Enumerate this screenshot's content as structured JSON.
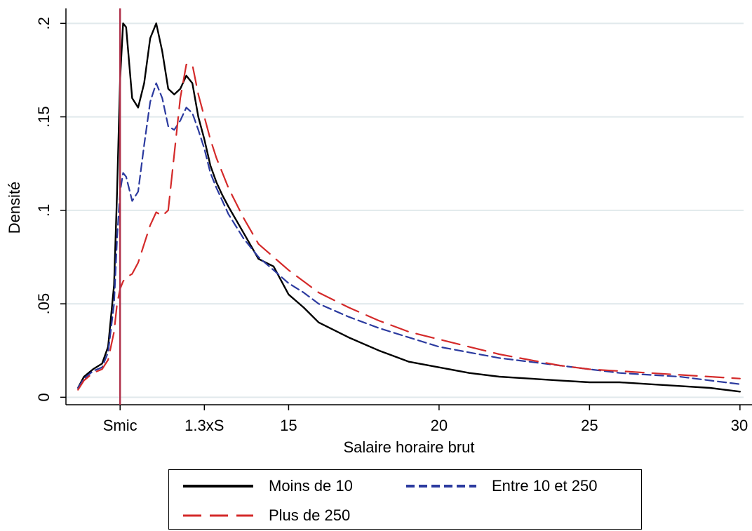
{
  "chart_data": {
    "type": "line",
    "title": "",
    "xlabel": "Salaire horaire brut",
    "ylabel": "Densité",
    "xlim": [
      7.6,
      30.4
    ],
    "ylim": [
      -0.004,
      0.208
    ],
    "grid": true,
    "legend_position": "bottom",
    "x_ticks": [
      {
        "value": 9.4,
        "label": "Smic"
      },
      {
        "value": 12.2,
        "label": "1.3xS"
      },
      {
        "value": 15,
        "label": "15"
      },
      {
        "value": 20,
        "label": "20"
      },
      {
        "value": 25,
        "label": "25"
      },
      {
        "value": 30,
        "label": "30"
      }
    ],
    "y_ticks": [
      {
        "value": 0,
        "label": "0"
      },
      {
        "value": 0.05,
        "label": ".05"
      },
      {
        "value": 0.1,
        "label": ".1"
      },
      {
        "value": 0.15,
        "label": ".15"
      },
      {
        "value": 0.2,
        "label": ".2"
      }
    ],
    "reference_line": {
      "x": 9.4,
      "color": "#b0304a"
    },
    "series": [
      {
        "name": "Moins de 10",
        "color": "#000000",
        "dash": "solid",
        "x": [
          8.0,
          8.2,
          8.5,
          8.8,
          9.0,
          9.2,
          9.3,
          9.4,
          9.5,
          9.6,
          9.8,
          10.0,
          10.2,
          10.4,
          10.6,
          10.8,
          11.0,
          11.2,
          11.4,
          11.6,
          11.8,
          12.0,
          12.2,
          12.4,
          12.6,
          12.8,
          13.0,
          13.5,
          14.0,
          14.5,
          15.0,
          15.5,
          16.0,
          17.0,
          18.0,
          19.0,
          20.0,
          21.0,
          22.0,
          23.0,
          24.0,
          25.0,
          26.0,
          27.0,
          28.0,
          29.0,
          30.0
        ],
        "y": [
          0.005,
          0.011,
          0.015,
          0.018,
          0.027,
          0.06,
          0.11,
          0.17,
          0.2,
          0.198,
          0.16,
          0.155,
          0.168,
          0.192,
          0.2,
          0.185,
          0.165,
          0.162,
          0.165,
          0.172,
          0.168,
          0.15,
          0.138,
          0.124,
          0.115,
          0.108,
          0.102,
          0.088,
          0.074,
          0.07,
          0.055,
          0.048,
          0.04,
          0.032,
          0.025,
          0.019,
          0.016,
          0.013,
          0.011,
          0.01,
          0.009,
          0.008,
          0.008,
          0.007,
          0.006,
          0.005,
          0.003
        ]
      },
      {
        "name": "Entre 10 et 250",
        "color": "#2b3a9f",
        "dash": "short",
        "x": [
          8.0,
          8.2,
          8.5,
          8.8,
          9.0,
          9.2,
          9.3,
          9.4,
          9.5,
          9.6,
          9.8,
          10.0,
          10.2,
          10.4,
          10.6,
          10.8,
          11.0,
          11.2,
          11.4,
          11.6,
          11.8,
          12.0,
          12.2,
          12.4,
          12.6,
          12.8,
          13.0,
          13.5,
          14.0,
          14.5,
          15.0,
          15.5,
          16.0,
          17.0,
          18.0,
          19.0,
          20.0,
          21.0,
          22.0,
          23.0,
          24.0,
          25.0,
          26.0,
          27.0,
          28.0,
          29.0,
          30.0
        ],
        "y": [
          0.005,
          0.01,
          0.014,
          0.016,
          0.024,
          0.05,
          0.085,
          0.11,
          0.12,
          0.118,
          0.105,
          0.11,
          0.135,
          0.158,
          0.168,
          0.16,
          0.145,
          0.143,
          0.148,
          0.155,
          0.152,
          0.143,
          0.133,
          0.12,
          0.112,
          0.105,
          0.098,
          0.085,
          0.075,
          0.068,
          0.061,
          0.056,
          0.05,
          0.043,
          0.037,
          0.032,
          0.027,
          0.024,
          0.021,
          0.019,
          0.017,
          0.015,
          0.013,
          0.012,
          0.011,
          0.009,
          0.007
        ]
      },
      {
        "name": "Plus de 250",
        "color": "#d42a2a",
        "dash": "long",
        "x": [
          8.0,
          8.2,
          8.5,
          8.8,
          9.0,
          9.2,
          9.3,
          9.4,
          9.5,
          9.6,
          9.8,
          10.0,
          10.2,
          10.4,
          10.6,
          10.8,
          11.0,
          11.2,
          11.4,
          11.6,
          11.8,
          12.0,
          12.2,
          12.4,
          12.6,
          12.8,
          13.0,
          13.5,
          14.0,
          14.5,
          15.0,
          15.5,
          16.0,
          17.0,
          18.0,
          19.0,
          20.0,
          21.0,
          22.0,
          23.0,
          24.0,
          25.0,
          26.0,
          27.0,
          28.0,
          29.0,
          30.0
        ],
        "y": [
          0.004,
          0.009,
          0.013,
          0.015,
          0.02,
          0.035,
          0.05,
          0.058,
          0.062,
          0.064,
          0.066,
          0.072,
          0.082,
          0.092,
          0.099,
          0.097,
          0.1,
          0.13,
          0.16,
          0.178,
          0.178,
          0.162,
          0.15,
          0.138,
          0.128,
          0.12,
          0.112,
          0.096,
          0.082,
          0.075,
          0.068,
          0.062,
          0.056,
          0.048,
          0.041,
          0.035,
          0.031,
          0.027,
          0.023,
          0.02,
          0.017,
          0.015,
          0.014,
          0.013,
          0.012,
          0.011,
          0.01
        ]
      }
    ]
  },
  "legend": {
    "items": [
      {
        "label": "Moins de 10",
        "color": "#000000",
        "dash": "solid"
      },
      {
        "label": "Entre 10 et 250",
        "color": "#2b3a9f",
        "dash": "short"
      },
      {
        "label": "Plus de 250",
        "color": "#d42a2a",
        "dash": "long"
      }
    ]
  }
}
